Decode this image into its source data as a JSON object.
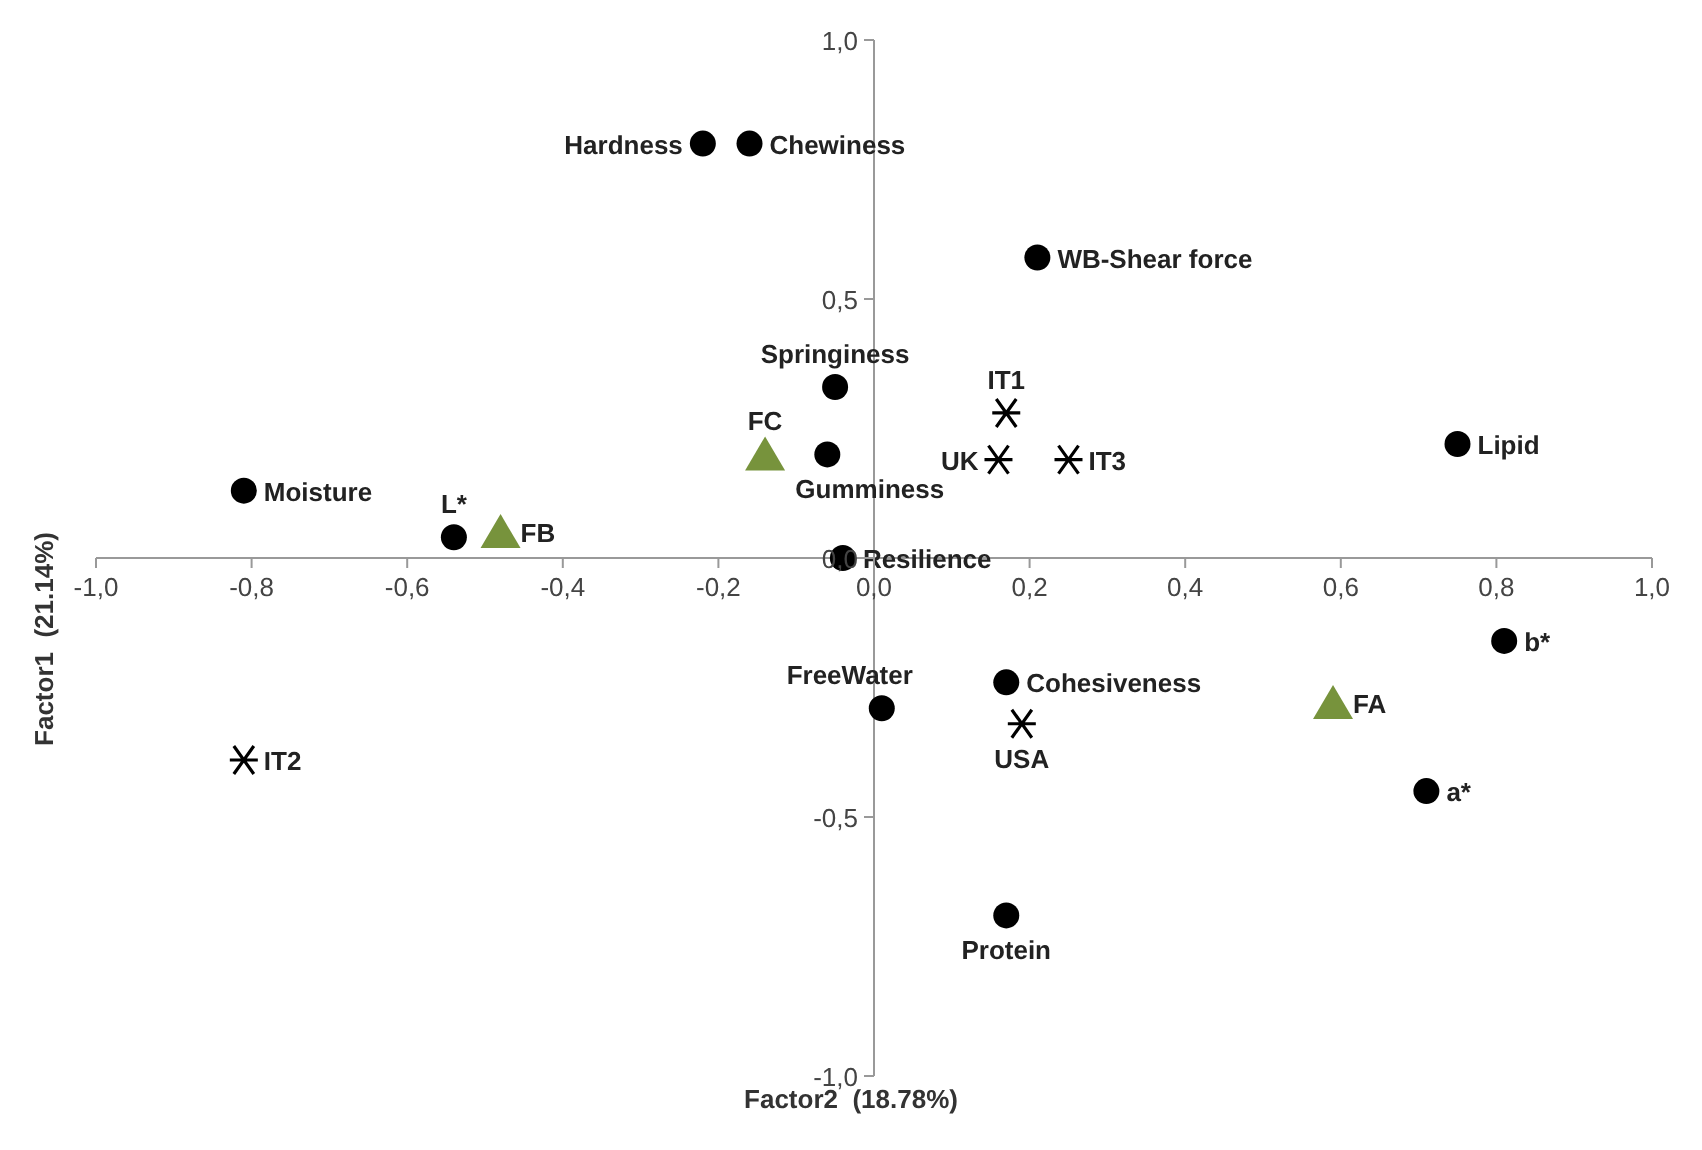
{
  "chart_data": {
    "type": "scatter",
    "xlabel": "Factor2  (18.78%)",
    "ylabel": "Factor1  (21.14%)",
    "xlim": [
      -1,
      1
    ],
    "ylim": [
      -1,
      1
    ],
    "xticks": [
      {
        "value": -1,
        "label": "-1,0"
      },
      {
        "value": -0.8,
        "label": "-0,8"
      },
      {
        "value": -0.6,
        "label": "-0,6"
      },
      {
        "value": -0.4,
        "label": "-0,4"
      },
      {
        "value": -0.2,
        "label": "-0,2"
      },
      {
        "value": 0,
        "label": "0,0"
      },
      {
        "value": 0.2,
        "label": "0,2"
      },
      {
        "value": 0.4,
        "label": "0,4"
      },
      {
        "value": 0.6,
        "label": "0,6"
      },
      {
        "value": 0.8,
        "label": "0,8"
      },
      {
        "value": 1,
        "label": "1,0"
      }
    ],
    "yticks": [
      {
        "value": -1,
        "label": "-1,0"
      },
      {
        "value": -0.5,
        "label": "-0,5"
      },
      {
        "value": 0,
        "label": "0,0"
      },
      {
        "value": 0.5,
        "label": "0,5"
      },
      {
        "value": 1,
        "label": "1,0"
      }
    ],
    "grid": false,
    "legend": false,
    "series": [
      {
        "color": "#000000",
        "marker": "circle",
        "x": [
          -0.22,
          -0.16,
          0.21,
          -0.05,
          -0.06,
          0.75,
          -0.81,
          -0.54,
          -0.04,
          0.81,
          0.01,
          0.17,
          0.71,
          0.17
        ],
        "values": [
          0.8,
          0.8,
          0.58,
          0.33,
          0.2,
          0.22,
          0.13,
          0.04,
          0.0,
          -0.16,
          -0.29,
          -0.24,
          -0.45,
          -0.69
        ],
        "value_labels": [
          "Hardness",
          "Chewiness",
          "WB-Shear force",
          "Springiness",
          "Gumminess",
          "Lipid",
          "Moisture",
          "L*",
          "Resilience",
          "b*",
          "FreeWater",
          "Cohesiveness",
          "a*",
          "Protein"
        ]
      },
      {
        "color": "#000000",
        "marker": "cross",
        "x": [
          0.17,
          0.16,
          0.25,
          0.19,
          -0.81
        ],
        "values": [
          0.28,
          0.19,
          0.19,
          -0.32,
          -0.39
        ],
        "value_labels": [
          "IT1",
          "UK",
          "IT3",
          "USA",
          "IT2"
        ]
      },
      {
        "color": "#77933c",
        "marker": "triangle",
        "x": [
          -0.14,
          -0.48,
          0.59
        ],
        "values": [
          0.2,
          0.05,
          -0.28
        ],
        "value_labels": [
          "FC",
          "FB",
          "FA"
        ]
      }
    ]
  }
}
